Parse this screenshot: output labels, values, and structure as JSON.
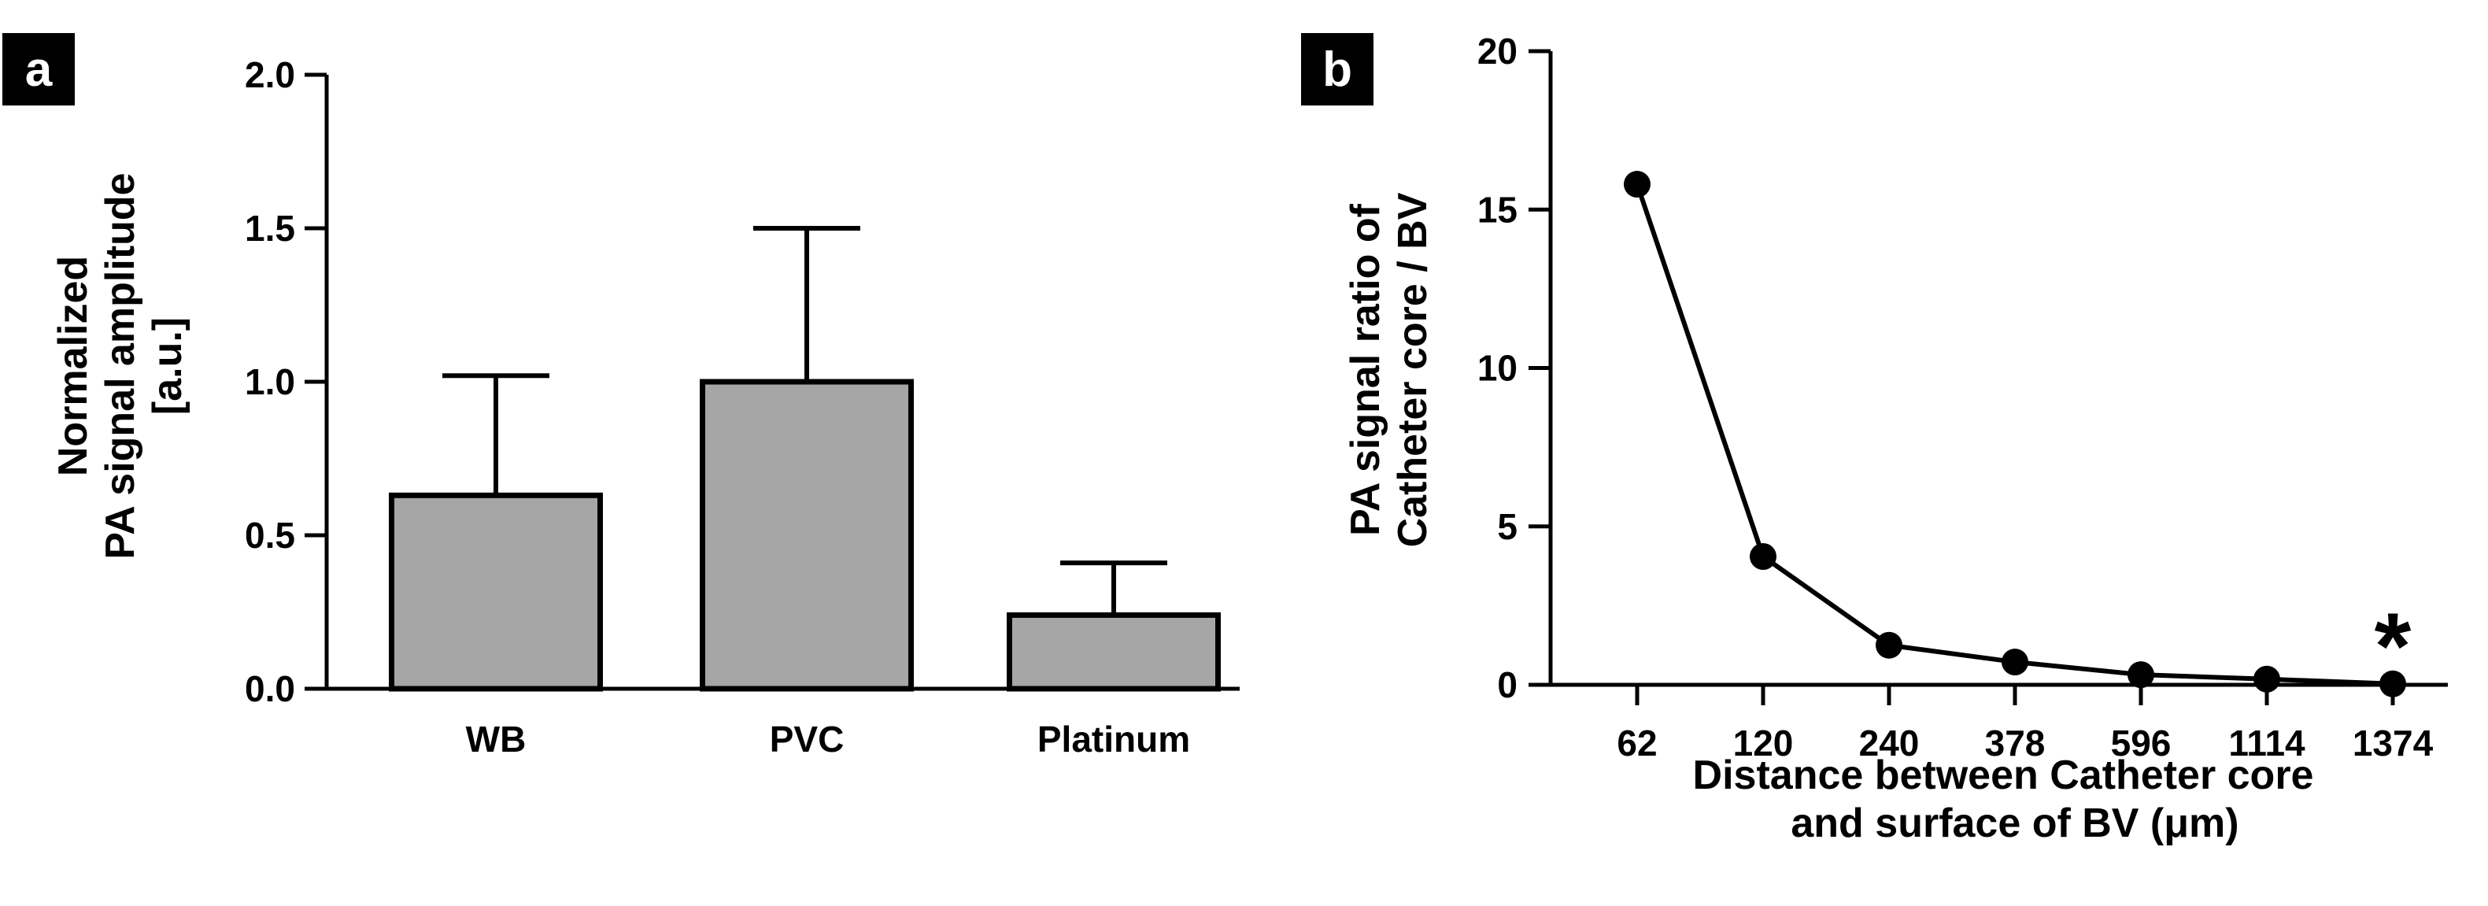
{
  "colors": {
    "bar_fill": "#a6a6a6",
    "line": "#000000",
    "badge_bg": "#000000",
    "badge_text": "#ffffff"
  },
  "chart_data": [
    {
      "panel_label": "a",
      "type": "bar",
      "categories": [
        "WB",
        "PVC",
        "Platinum"
      ],
      "values": [
        0.63,
        1.0,
        0.24
      ],
      "errors": [
        0.39,
        0.5,
        0.17
      ],
      "ylim": [
        0,
        2
      ],
      "yticks": [
        "0.0",
        "0.5",
        "1.0",
        "1.5",
        "2.0"
      ],
      "ylabel_lines": [
        "Normalized",
        "PA signal amplitude",
        "[a.u.]"
      ],
      "xlabel": ""
    },
    {
      "panel_label": "b",
      "type": "line",
      "categories": [
        "62",
        "120",
        "240",
        "378",
        "596",
        "1114",
        "1374"
      ],
      "values": [
        15.8,
        4.05,
        1.25,
        0.72,
        0.32,
        0.18,
        0.03
      ],
      "ylim": [
        0,
        20
      ],
      "yticks": [
        "0",
        "5",
        "10",
        "15",
        "20"
      ],
      "ylabel_lines": [
        "PA signal ratio of",
        "Catheter core / BV"
      ],
      "xlabel_lines": [
        "Distance between Catheter core",
        "and surface of BV (μm)"
      ],
      "annotation": {
        "text": "*",
        "category": "1374"
      }
    }
  ]
}
